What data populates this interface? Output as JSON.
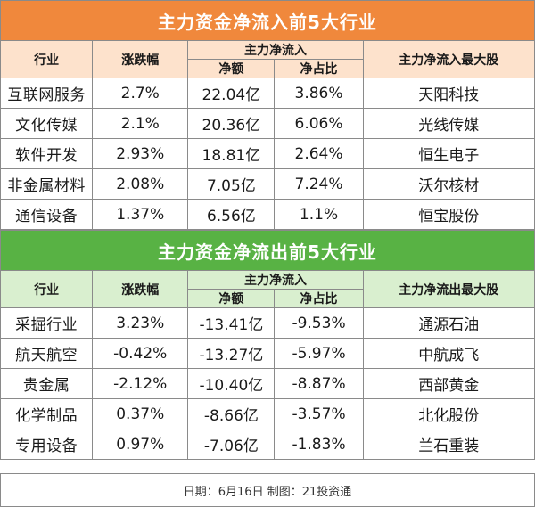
{
  "inflow": {
    "title": "主力资金净流入前5大行业",
    "headers": {
      "industry": "行业",
      "change": "涨跌幅",
      "group": "主力净流入",
      "net": "净额",
      "ratio": "净占比",
      "top_stock": "主力净流入最大股"
    },
    "rows": [
      {
        "industry": "互联网服务",
        "change": "2.7%",
        "net": "22.04亿",
        "ratio": "3.86%",
        "top_stock": "天阳科技"
      },
      {
        "industry": "文化传媒",
        "change": "2.1%",
        "net": "20.36亿",
        "ratio": "6.06%",
        "top_stock": "光线传媒"
      },
      {
        "industry": "软件开发",
        "change": "2.93%",
        "net": "18.81亿",
        "ratio": "2.64%",
        "top_stock": "恒生电子"
      },
      {
        "industry": "非金属材料",
        "change": "2.08%",
        "net": "7.05亿",
        "ratio": "7.24%",
        "top_stock": "沃尔核材"
      },
      {
        "industry": "通信设备",
        "change": "1.37%",
        "net": "6.56亿",
        "ratio": "1.1%",
        "top_stock": "恒宝股份"
      }
    ]
  },
  "outflow": {
    "title": "主力资金净流出前5大行业",
    "headers": {
      "industry": "行业",
      "change": "涨跌幅",
      "group": "主力净流入",
      "net": "净额",
      "ratio": "净占比",
      "top_stock": "主力净流出最大股"
    },
    "rows": [
      {
        "industry": "采掘行业",
        "change": "3.23%",
        "net": "-13.41亿",
        "ratio": "-9.53%",
        "top_stock": "通源石油"
      },
      {
        "industry": "航天航空",
        "change": "-0.42%",
        "net": "-13.27亿",
        "ratio": "-5.97%",
        "top_stock": "中航成飞"
      },
      {
        "industry": "贵金属",
        "change": "-2.12%",
        "net": "-10.40亿",
        "ratio": "-8.87%",
        "top_stock": "西部黄金"
      },
      {
        "industry": "化学制品",
        "change": "0.37%",
        "net": "-8.66亿",
        "ratio": "-3.57%",
        "top_stock": "北化股份"
      },
      {
        "industry": "专用设备",
        "change": "0.97%",
        "net": "-7.06亿",
        "ratio": "-1.83%",
        "top_stock": "兰石重装"
      }
    ]
  },
  "footer": "日期：6月16日 制图：21投资通"
}
